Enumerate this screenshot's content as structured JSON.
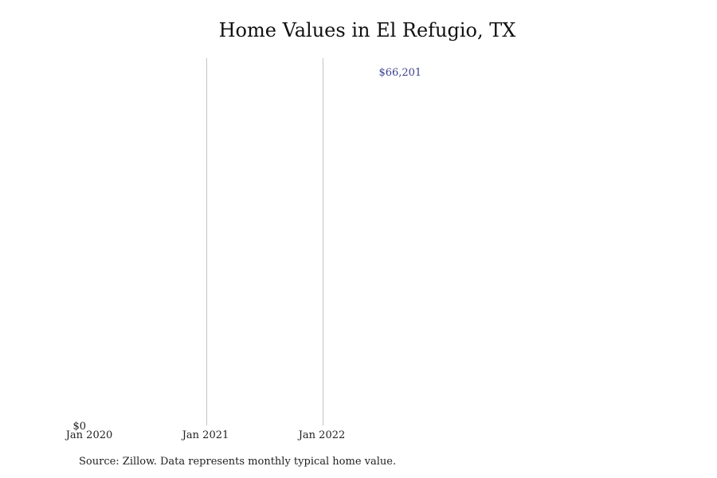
{
  "chart_data": {
    "type": "line",
    "title": "Home Values in El Refugio, TX",
    "xlabel": "",
    "ylabel": "",
    "x_ticks": [
      "Jan 2020",
      "Jan 2021",
      "Jan 2022"
    ],
    "y_ticks": [
      "$0"
    ],
    "ylim": [
      0,
      66201
    ],
    "grid": "vertical",
    "series": [
      {
        "x": [
          "2022-09"
        ],
        "values": [
          66201
        ],
        "color": "#3b3f8f"
      }
    ],
    "annotations": [
      {
        "x": "2022-09",
        "y": 66201,
        "text": "$66,201"
      }
    ],
    "source": "Source: Zillow. Data represents monthly typical home value."
  }
}
